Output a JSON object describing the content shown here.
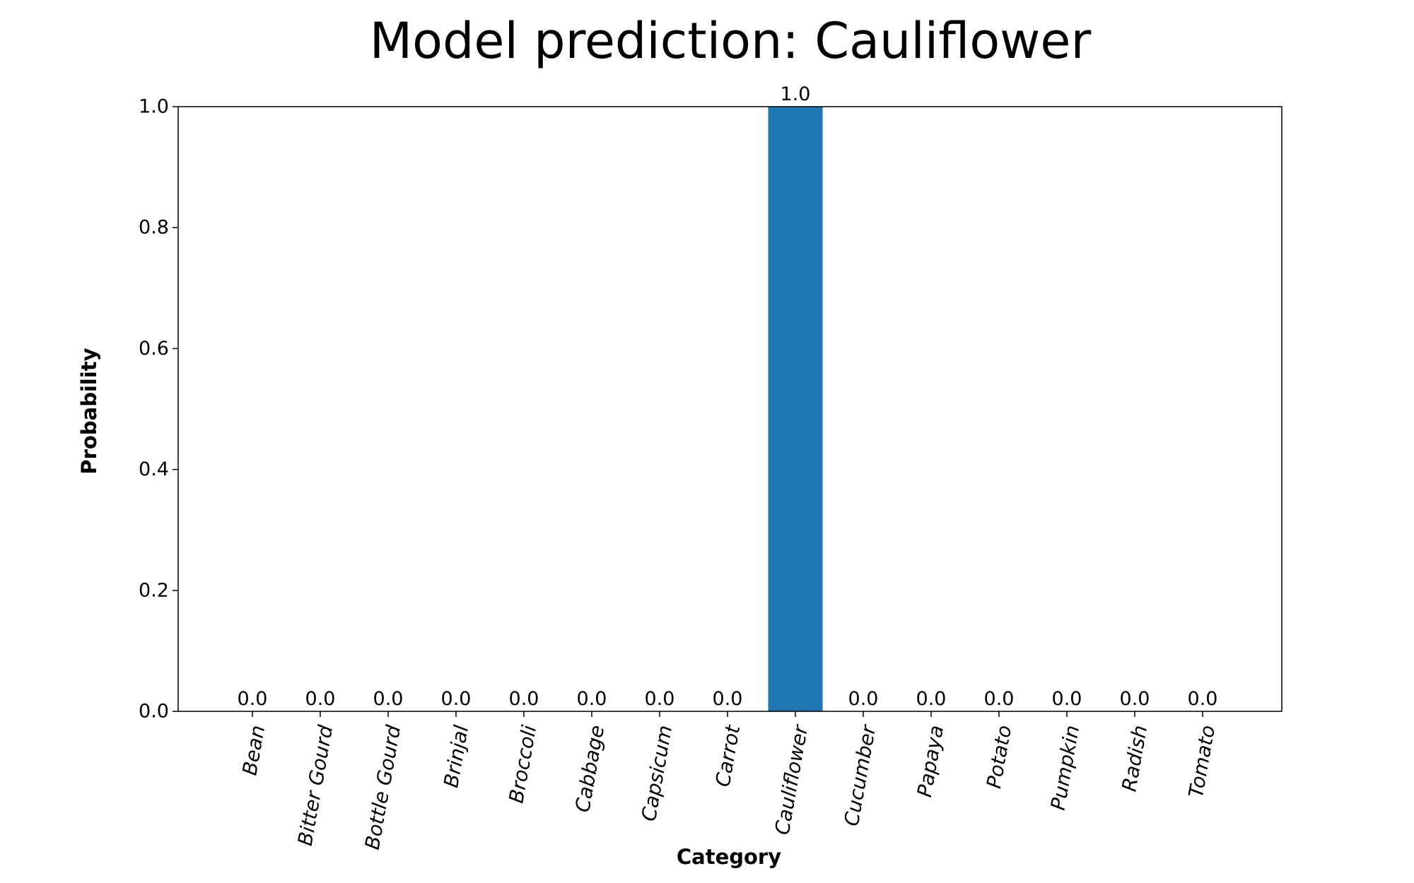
{
  "chart_data": {
    "type": "bar",
    "title": "Model prediction: Cauliflower",
    "xlabel": "Category",
    "ylabel": "Probability",
    "categories": [
      "Bean",
      "Bitter Gourd",
      "Bottle Gourd",
      "Brinjal",
      "Broccoli",
      "Cabbage",
      "Capsicum",
      "Carrot",
      "Cauliflower",
      "Cucumber",
      "Papaya",
      "Potato",
      "Pumpkin",
      "Radish",
      "Tomato"
    ],
    "values": [
      0.0,
      0.0,
      0.0,
      0.0,
      0.0,
      0.0,
      0.0,
      0.0,
      1.0,
      0.0,
      0.0,
      0.0,
      0.0,
      0.0,
      0.0
    ],
    "value_labels": [
      "0.0",
      "0.0",
      "0.0",
      "0.0",
      "0.0",
      "0.0",
      "0.0",
      "0.0",
      "1.0",
      "0.0",
      "0.0",
      "0.0",
      "0.0",
      "0.0",
      "0.0"
    ],
    "ylim": [
      0,
      1.0
    ],
    "yticks": [
      "0.0",
      "0.2",
      "0.4",
      "0.6",
      "0.8",
      "1.0"
    ],
    "grid": false,
    "bar_color": "#1f77b4"
  }
}
